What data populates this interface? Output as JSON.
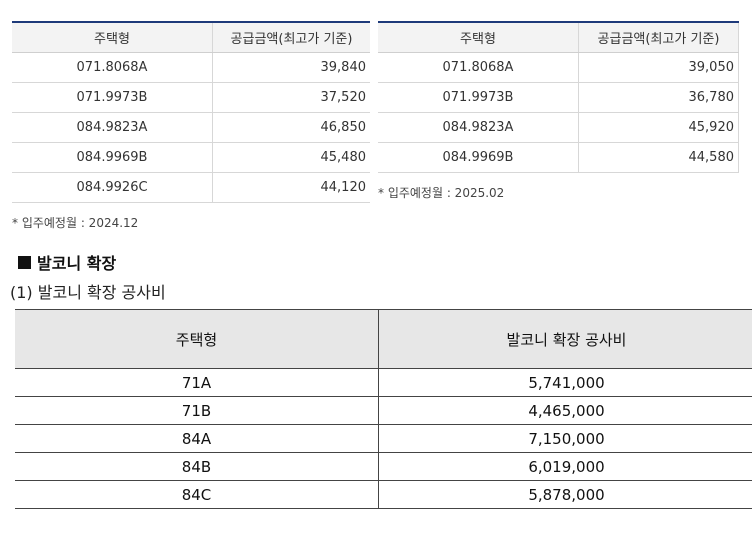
{
  "table_a": {
    "headers": [
      "주택형",
      "공급금액(최고가 기준)"
    ],
    "rows": [
      [
        "071.8068A",
        "39,840"
      ],
      [
        "071.9973B",
        "37,520"
      ],
      [
        "084.9823A",
        "46,850"
      ],
      [
        "084.9969B",
        "45,480"
      ],
      [
        "084.9926C",
        "44,120"
      ]
    ],
    "note": "* 입주예정월 : 2024.12"
  },
  "table_b": {
    "headers": [
      "주택형",
      "공급금액(최고가 기준)"
    ],
    "rows": [
      [
        "071.8068A",
        "39,050"
      ],
      [
        "071.9973B",
        "36,780"
      ],
      [
        "084.9823A",
        "45,920"
      ],
      [
        "084.9969B",
        "44,580"
      ]
    ],
    "note": "* 입주예정월 : 2025.02"
  },
  "section": {
    "icon": "black-square-icon",
    "title": "발코니 확장",
    "subtitle": "(1) 발코니 확장 공사비"
  },
  "balcony_table": {
    "headers": [
      "주택형",
      "발코니 확장 공사비"
    ],
    "rows": [
      [
        "71A",
        "5,741,000"
      ],
      [
        "71B",
        "4,465,000"
      ],
      [
        "84A",
        "7,150,000"
      ],
      [
        "84B",
        "6,019,000"
      ],
      [
        "84C",
        "5,878,000"
      ]
    ]
  },
  "colors": {
    "table_top_border": "#1e3a7a",
    "header_bg": "#f3f3f3",
    "balcony_header_bg": "#e7e7e7"
  }
}
